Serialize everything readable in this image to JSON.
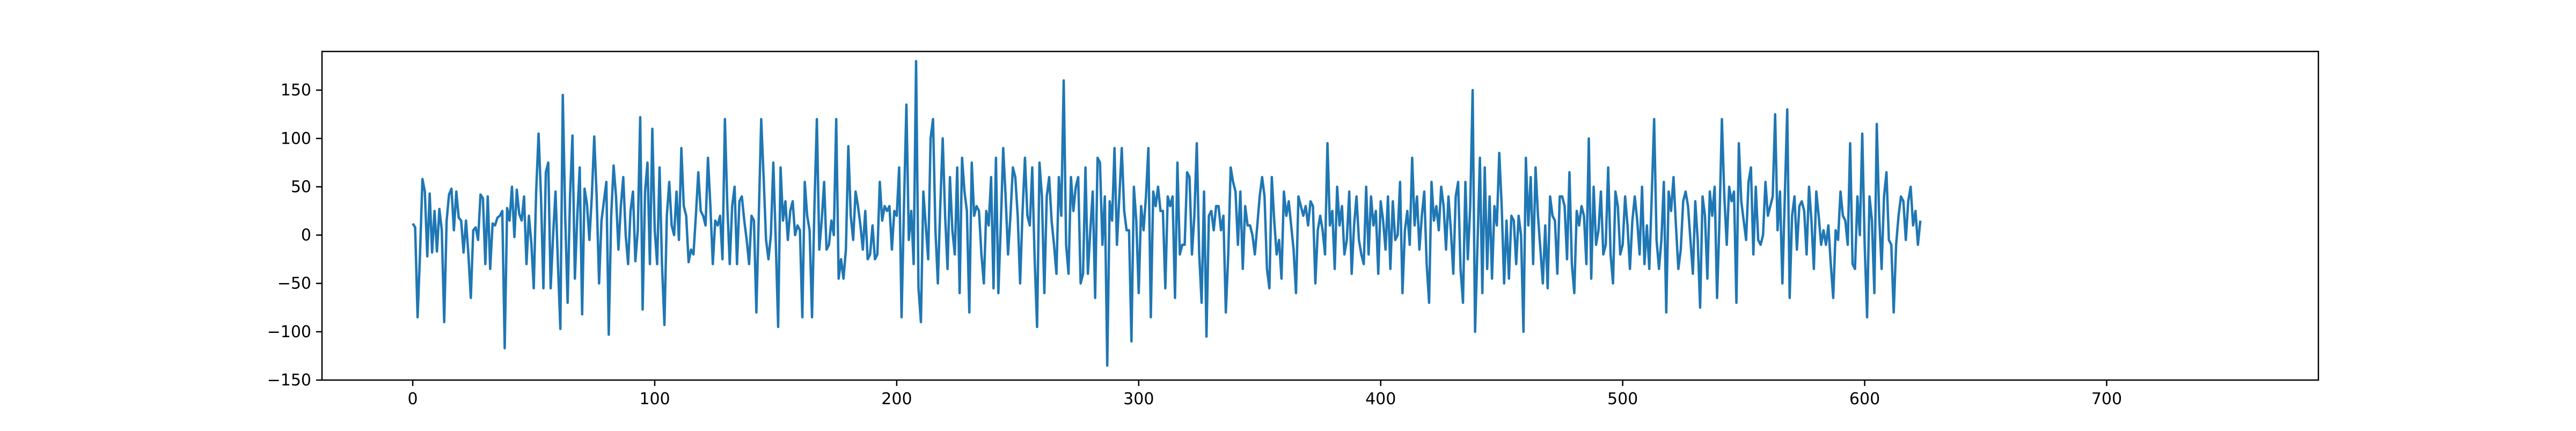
{
  "chart_data": {
    "type": "line",
    "title": "",
    "xlabel": "",
    "ylabel": "",
    "xlim": [
      -37.5,
      787.5
    ],
    "ylim": [
      -150,
      190
    ],
    "grid": false,
    "x_ticks": [
      0,
      100,
      200,
      300,
      400,
      500,
      600,
      700
    ],
    "x_tick_labels": [
      "0",
      "100",
      "200",
      "300",
      "400",
      "500",
      "600",
      "700"
    ],
    "y_ticks": [
      -150,
      -100,
      -50,
      0,
      50,
      100,
      150
    ],
    "y_tick_labels": [
      "−150",
      "−100",
      "−50",
      "0",
      "50",
      "100",
      "150"
    ],
    "series": [
      {
        "color": "#1f77b4",
        "x_start": 0,
        "x_step": 1,
        "values": [
          12,
          8,
          -85,
          -20,
          58,
          45,
          -22,
          43,
          -18,
          25,
          -17,
          27,
          5,
          -90,
          15,
          42,
          48,
          5,
          45,
          18,
          15,
          -18,
          15,
          -20,
          -65,
          5,
          8,
          -5,
          42,
          38,
          -30,
          40,
          -35,
          12,
          10,
          18,
          20,
          25,
          -117,
          28,
          15,
          50,
          -2,
          47,
          22,
          15,
          40,
          -30,
          20,
          -8,
          -55,
          45,
          105,
          40,
          -55,
          65,
          75,
          -55,
          0,
          45,
          -30,
          -97,
          145,
          20,
          -70,
          40,
          103,
          -45,
          20,
          70,
          -82,
          48,
          32,
          -5,
          40,
          102,
          40,
          -50,
          15,
          35,
          55,
          -103,
          20,
          72,
          40,
          -15,
          30,
          60,
          0,
          -30,
          25,
          45,
          -27,
          5,
          122,
          -77,
          45,
          75,
          -30,
          110,
          5,
          -30,
          70,
          -30,
          -93,
          20,
          55,
          10,
          0,
          45,
          -5,
          90,
          30,
          20,
          -28,
          -15,
          -20,
          20,
          65,
          25,
          20,
          10,
          80,
          30,
          -30,
          15,
          10,
          20,
          -25,
          120,
          30,
          -30,
          30,
          50,
          -30,
          35,
          40,
          15,
          -5,
          -30,
          20,
          15,
          -80,
          20,
          120,
          60,
          -5,
          -25,
          0,
          75,
          -5,
          -95,
          70,
          15,
          35,
          -5,
          25,
          35,
          0,
          10,
          5,
          -85,
          55,
          20,
          5,
          -85,
          30,
          120,
          -15,
          15,
          55,
          -15,
          -10,
          15,
          0,
          120,
          -45,
          -25,
          -45,
          -15,
          92,
          20,
          -5,
          45,
          30,
          10,
          -15,
          25,
          -25,
          -20,
          10,
          -25,
          -20,
          55,
          15,
          30,
          25,
          30,
          -15,
          25,
          20,
          70,
          -85,
          30,
          135,
          -5,
          25,
          -30,
          180,
          -55,
          -90,
          45,
          10,
          -25,
          100,
          120,
          5,
          -50,
          30,
          100,
          20,
          -35,
          60,
          5,
          -20,
          70,
          -60,
          80,
          45,
          25,
          -80,
          75,
          20,
          30,
          25,
          -20,
          -50,
          25,
          10,
          60,
          -55,
          80,
          -60,
          10,
          90,
          40,
          -20,
          20,
          70,
          60,
          20,
          -50,
          25,
          80,
          20,
          10,
          70,
          -25,
          -95,
          75,
          40,
          -60,
          40,
          60,
          15,
          -10,
          -40,
          60,
          20,
          160,
          -10,
          -40,
          60,
          25,
          50,
          60,
          -50,
          -40,
          70,
          -40,
          5,
          45,
          -65,
          80,
          75,
          -10,
          40,
          -135,
          35,
          15,
          90,
          -10,
          40,
          90,
          25,
          5,
          5,
          -110,
          50,
          15,
          -60,
          30,
          5,
          40,
          90,
          -85,
          45,
          30,
          50,
          25,
          25,
          -55,
          40,
          30,
          40,
          -65,
          75,
          -20,
          -10,
          -10,
          65,
          60,
          -20,
          20,
          95,
          -20,
          -70,
          45,
          -105,
          20,
          25,
          5,
          30,
          30,
          5,
          20,
          -80,
          -20,
          70,
          55,
          45,
          -10,
          45,
          -35,
          30,
          10,
          10,
          0,
          -20,
          10,
          40,
          60,
          40,
          -35,
          -55,
          60,
          15,
          -20,
          -5,
          -45,
          45,
          20,
          35,
          10,
          -15,
          -60,
          40,
          30,
          20,
          30,
          10,
          35,
          30,
          -50,
          5,
          20,
          5,
          -20,
          95,
          10,
          25,
          -35,
          50,
          10,
          30,
          -20,
          -5,
          45,
          -40,
          10,
          40,
          -5,
          -20,
          -30,
          50,
          -20,
          40,
          10,
          25,
          -40,
          35,
          15,
          -15,
          40,
          -35,
          35,
          -5,
          0,
          55,
          -60,
          5,
          25,
          -10,
          80,
          10,
          40,
          -15,
          20,
          45,
          -30,
          -70,
          55,
          15,
          30,
          5,
          50,
          30,
          -15,
          40,
          5,
          -40,
          40,
          55,
          -35,
          -70,
          55,
          -25,
          30,
          150,
          -100,
          -10,
          80,
          -60,
          70,
          -35,
          40,
          -45,
          30,
          10,
          85,
          30,
          -50,
          15,
          -45,
          20,
          15,
          -30,
          20,
          0,
          -100,
          80,
          10,
          60,
          -30,
          70,
          20,
          -15,
          -50,
          10,
          -55,
          40,
          20,
          15,
          -40,
          40,
          40,
          30,
          -25,
          65,
          -30,
          -60,
          25,
          10,
          30,
          20,
          -30,
          100,
          -45,
          50,
          -10,
          5,
          45,
          -20,
          -10,
          70,
          -20,
          -50,
          45,
          30,
          -20,
          -10,
          40,
          10,
          -35,
          15,
          40,
          15,
          -20,
          50,
          -30,
          10,
          -35,
          40,
          120,
          -5,
          -35,
          -5,
          55,
          -80,
          45,
          25,
          60,
          10,
          -35,
          -15,
          35,
          45,
          30,
          -5,
          -40,
          35,
          -5,
          -75,
          40,
          20,
          -45,
          45,
          20,
          50,
          -65,
          15,
          120,
          40,
          -10,
          50,
          35,
          45,
          -70,
          95,
          35,
          15,
          -5,
          55,
          70,
          -20,
          50,
          -5,
          -10,
          0,
          55,
          20,
          30,
          40,
          125,
          5,
          45,
          -50,
          40,
          130,
          -65,
          20,
          40,
          -15,
          30,
          35,
          25,
          -20,
          50,
          15,
          -35,
          45,
          20,
          -10,
          5,
          -10,
          10,
          -30,
          -65,
          5,
          -5,
          45,
          20,
          15,
          -10,
          95,
          -30,
          -35,
          40,
          0,
          105,
          -10,
          -85,
          40,
          15,
          -60,
          115,
          20,
          -35,
          40,
          65,
          -5,
          -10,
          -80,
          -10,
          20,
          40,
          35,
          -5,
          35,
          50,
          10,
          25,
          -10,
          15
        ]
      }
    ]
  }
}
